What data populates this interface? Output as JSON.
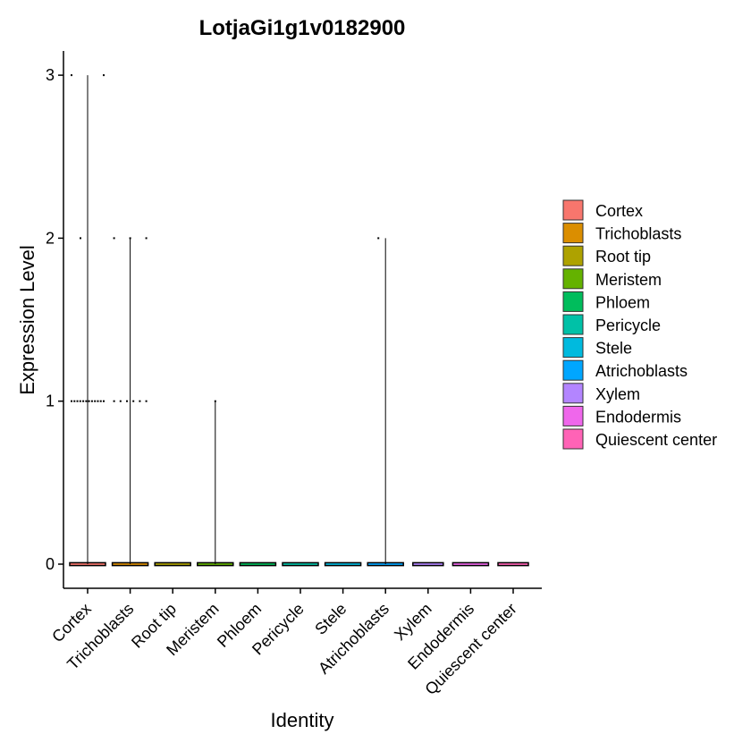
{
  "chart_data": {
    "type": "violin",
    "title": "LotjaGi1g1v0182900",
    "xlabel": "Identity",
    "ylabel": "Expression Level",
    "ylim": [
      -0.15,
      3.15
    ],
    "yticks": [
      0,
      1,
      2,
      3
    ],
    "grid": false,
    "legend_position": "right",
    "categories": [
      "Cortex",
      "Trichoblasts",
      "Root tip",
      "Meristem",
      "Phloem",
      "Pericycle",
      "Stele",
      "Atrichoblasts",
      "Xylem",
      "Endodermis",
      "Quiescent center"
    ],
    "colors": [
      "#F8766D",
      "#DB8E00",
      "#AEA200",
      "#64B200",
      "#00BD5C",
      "#00C1A7",
      "#00BADE",
      "#00A6FF",
      "#B385FF",
      "#EF67EB",
      "#FF63B6"
    ],
    "max_values": [
      3,
      2,
      0,
      1,
      0,
      0,
      0,
      2,
      0,
      0,
      0
    ],
    "points": [
      {
        "category": "Cortex",
        "values": [
          3,
          3,
          2,
          1,
          1,
          1,
          1,
          1,
          1,
          1,
          1,
          1,
          1,
          1,
          1
        ]
      },
      {
        "category": "Trichoblasts",
        "values": [
          2,
          2,
          2,
          1,
          1,
          1,
          1,
          1,
          1
        ]
      },
      {
        "category": "Meristem",
        "values": [
          1
        ]
      },
      {
        "category": "Atrichoblasts",
        "values": [
          2
        ]
      }
    ]
  }
}
